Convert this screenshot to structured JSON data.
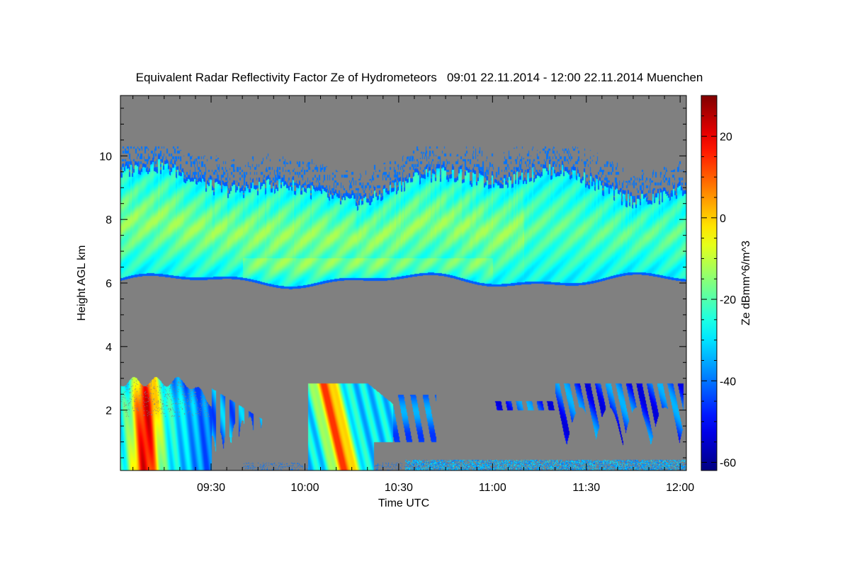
{
  "chart_data": {
    "type": "heatmap",
    "title": "Equivalent Radar Reflectivity Factor Ze of Hydrometeors   09:01 22.11.2014 - 12:00 22.11.2014 Muenchen",
    "xlabel": "Time UTC",
    "ylabel": "Height AGL km",
    "colorbar_label": "Ze dBmm^6/m^3",
    "x_unit": "minutes since 09:00 UTC",
    "xlim": [
      1,
      182
    ],
    "ylim": [
      0.1,
      11.9
    ],
    "x_ticks": [
      {
        "value": 30,
        "label": "09:30"
      },
      {
        "value": 60,
        "label": "10:00"
      },
      {
        "value": 90,
        "label": "10:30"
      },
      {
        "value": 120,
        "label": "11:00"
      },
      {
        "value": 150,
        "label": "11:30"
      },
      {
        "value": 180,
        "label": "12:00"
      }
    ],
    "y_ticks": [
      {
        "value": 2,
        "label": "2"
      },
      {
        "value": 4,
        "label": "4"
      },
      {
        "value": 6,
        "label": "6"
      },
      {
        "value": 8,
        "label": "8"
      },
      {
        "value": 10,
        "label": "10"
      }
    ],
    "colorbar_range": [
      -62,
      30
    ],
    "colorbar_ticks": [
      {
        "value": 20,
        "label": "20"
      },
      {
        "value": 0,
        "label": "0"
      },
      {
        "value": -20,
        "label": "-20"
      },
      {
        "value": -40,
        "label": "-40"
      },
      {
        "value": -60,
        "label": "-60"
      }
    ],
    "colormap": "jet",
    "background_color": "#808080",
    "grid": false,
    "features": [
      {
        "name": "upper cloud layer",
        "x_range": [
          1,
          182
        ],
        "base_km": [
          6.0,
          6.3
        ],
        "top_km": [
          9.0,
          10.2
        ],
        "ze_range_dbz": [
          -40,
          -20
        ],
        "core_dbz": -15
      },
      {
        "name": "lower precipitation 09:01-09:30",
        "x_range": [
          1,
          30
        ],
        "height_km": [
          0.1,
          3.0
        ],
        "ze_range_dbz": [
          -35,
          22
        ]
      },
      {
        "name": "lower precipitation 10:00-10:30",
        "x_range": [
          61,
          88
        ],
        "height_km": [
          0.1,
          2.9
        ],
        "ze_range_dbz": [
          -35,
          12
        ]
      },
      {
        "name": "scattered echoes 11:00-12:00",
        "x_range": [
          120,
          182
        ],
        "height_km": [
          0.8,
          2.9
        ],
        "ze_range_dbz": [
          -50,
          -25
        ]
      }
    ]
  }
}
